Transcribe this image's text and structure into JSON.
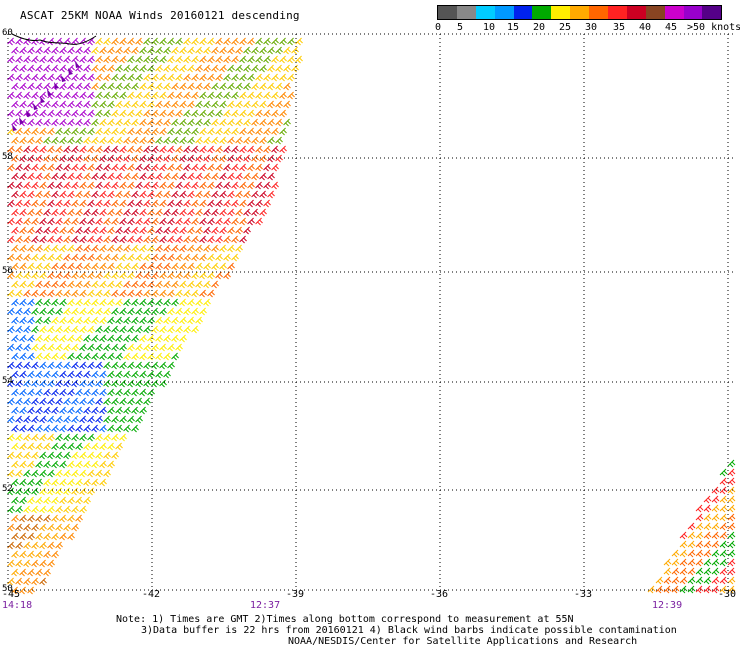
{
  "title": "ASCAT 25KM NOAA Winds 20160121 descending",
  "legend": {
    "colors": [
      "#555555",
      "#888888",
      "#00ccff",
      "#0099ff",
      "#0022ee",
      "#00aa00",
      "#ffee00",
      "#ffaa00",
      "#ff6600",
      "#ff2222",
      "#cc0022",
      "#884422",
      "#cc00cc",
      "#9900cc",
      "#550088"
    ],
    "labels": [
      "0",
      "5",
      "10",
      "15",
      "20",
      "25",
      "30",
      "35",
      "40",
      "45",
      ">50 knots"
    ]
  },
  "map": {
    "lat_labels": [
      "60",
      "58",
      "56",
      "54",
      "52",
      "50"
    ],
    "lon_labels": [
      "-45",
      "-42",
      "-39",
      "-36",
      "-33",
      "-30"
    ],
    "time_labels": [
      "14:18",
      "12:37",
      "12:39"
    ]
  },
  "notes": {
    "line1": "Note: 1) Times are GMT 2)Times along bottom correspond to measurement at 55N",
    "line2": "3)Data buffer is 22 hrs from 20160121 4) Black wind barbs indicate possible contamination",
    "line3": "NOAA/NESDIS/Center for Satellite Applications and Research"
  }
}
